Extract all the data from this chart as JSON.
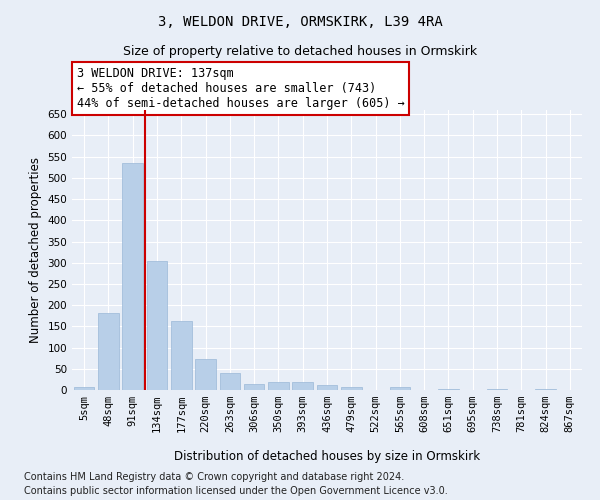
{
  "title": "3, WELDON DRIVE, ORMSKIRK, L39 4RA",
  "subtitle": "Size of property relative to detached houses in Ormskirk",
  "xlabel": "Distribution of detached houses by size in Ormskirk",
  "ylabel": "Number of detached properties",
  "categories": [
    "5sqm",
    "48sqm",
    "91sqm",
    "134sqm",
    "177sqm",
    "220sqm",
    "263sqm",
    "306sqm",
    "350sqm",
    "393sqm",
    "436sqm",
    "479sqm",
    "522sqm",
    "565sqm",
    "608sqm",
    "651sqm",
    "695sqm",
    "738sqm",
    "781sqm",
    "824sqm",
    "867sqm"
  ],
  "values": [
    8,
    182,
    535,
    304,
    163,
    72,
    40,
    15,
    18,
    18,
    12,
    6,
    0,
    6,
    0,
    2,
    0,
    2,
    0,
    3,
    0
  ],
  "bar_color": "#b8cfe8",
  "bar_edge_color": "#9ab8d8",
  "vline_x": 2.5,
  "vline_color": "#cc0000",
  "annotation_text": "3 WELDON DRIVE: 137sqm\n← 55% of detached houses are smaller (743)\n44% of semi-detached houses are larger (605) →",
  "annotation_box_color": "#ffffff",
  "annotation_box_edge": "#cc0000",
  "ylim": [
    0,
    660
  ],
  "yticks": [
    0,
    50,
    100,
    150,
    200,
    250,
    300,
    350,
    400,
    450,
    500,
    550,
    600,
    650
  ],
  "footer_line1": "Contains HM Land Registry data © Crown copyright and database right 2024.",
  "footer_line2": "Contains public sector information licensed under the Open Government Licence v3.0.",
  "bg_color": "#e8eef7",
  "plot_bg_color": "#e8eef7",
  "grid_color": "#ffffff",
  "title_fontsize": 10,
  "subtitle_fontsize": 9,
  "label_fontsize": 8.5,
  "tick_fontsize": 7.5,
  "footer_fontsize": 7,
  "ann_fontsize": 8.5
}
